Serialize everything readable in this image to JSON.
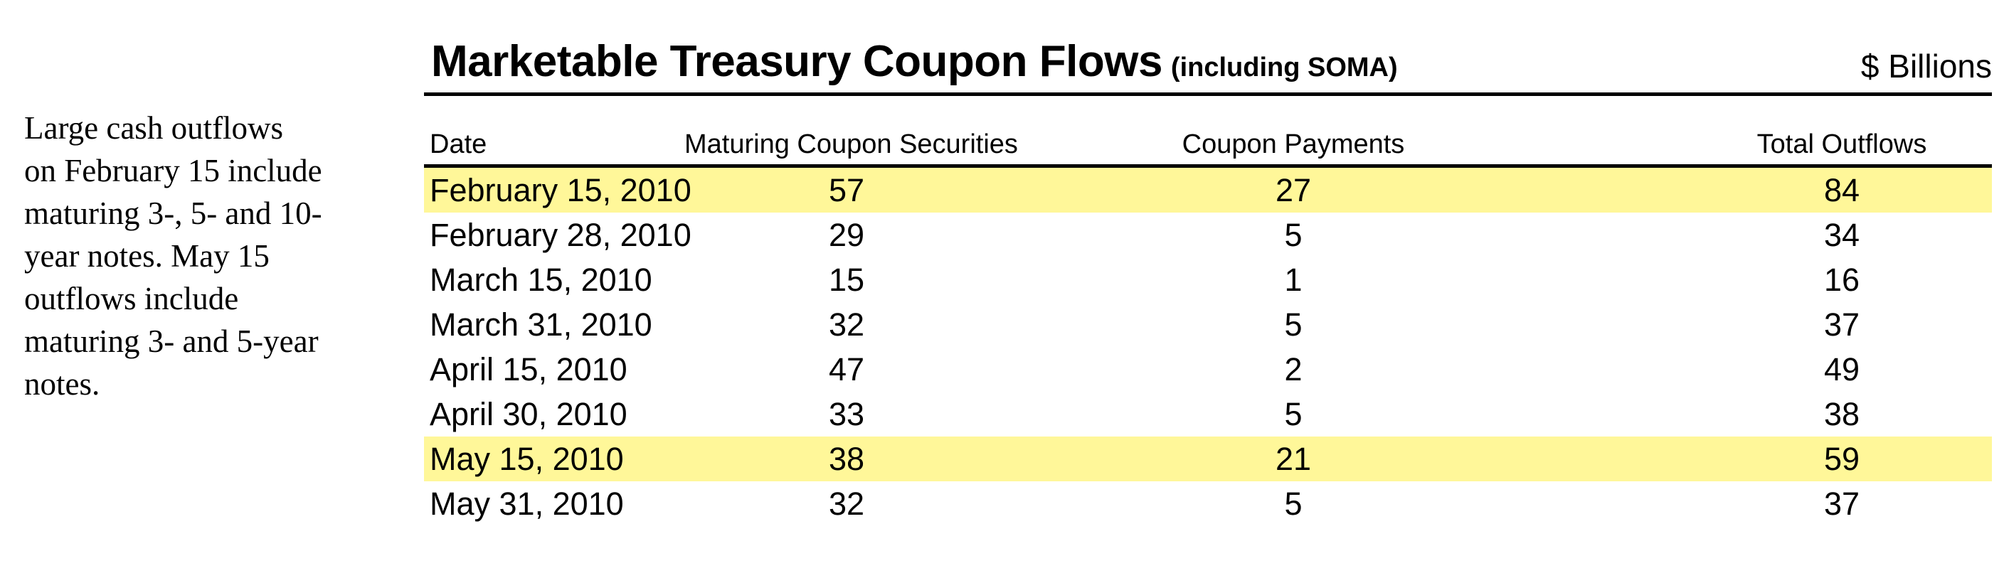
{
  "note": "Large cash outflows\non February 15 include\nmaturing 3-, 5- and 10-\nyear notes.  May 15\noutflows include\nmaturing 3- and 5-year\nnotes.",
  "header": {
    "title": "Marketable Treasury Coupon Flows",
    "subtitle": "(including SOMA)",
    "units": "$ Billions"
  },
  "table": {
    "columns": [
      "Date",
      "Maturing Coupon Securities",
      "Coupon Payments",
      "Total Outflows"
    ],
    "highlight_color": "#fff799",
    "rows": [
      {
        "date": "February 15, 2010",
        "maturing": "57",
        "coupon": "27",
        "total": "84",
        "highlighted": true
      },
      {
        "date": "February 28, 2010",
        "maturing": "29",
        "coupon": "5",
        "total": "34",
        "highlighted": false
      },
      {
        "date": "March 15, 2010",
        "maturing": "15",
        "coupon": "1",
        "total": "16",
        "highlighted": false
      },
      {
        "date": "March 31, 2010",
        "maturing": "32",
        "coupon": "5",
        "total": "37",
        "highlighted": false
      },
      {
        "date": "April 15, 2010",
        "maturing": "47",
        "coupon": "2",
        "total": "49",
        "highlighted": false
      },
      {
        "date": "April 30, 2010",
        "maturing": "33",
        "coupon": "5",
        "total": "38",
        "highlighted": false
      },
      {
        "date": "May 15, 2010",
        "maturing": "38",
        "coupon": "21",
        "total": "59",
        "highlighted": true
      },
      {
        "date": "May 31, 2010",
        "maturing": "32",
        "coupon": "5",
        "total": "37",
        "highlighted": false
      }
    ]
  }
}
